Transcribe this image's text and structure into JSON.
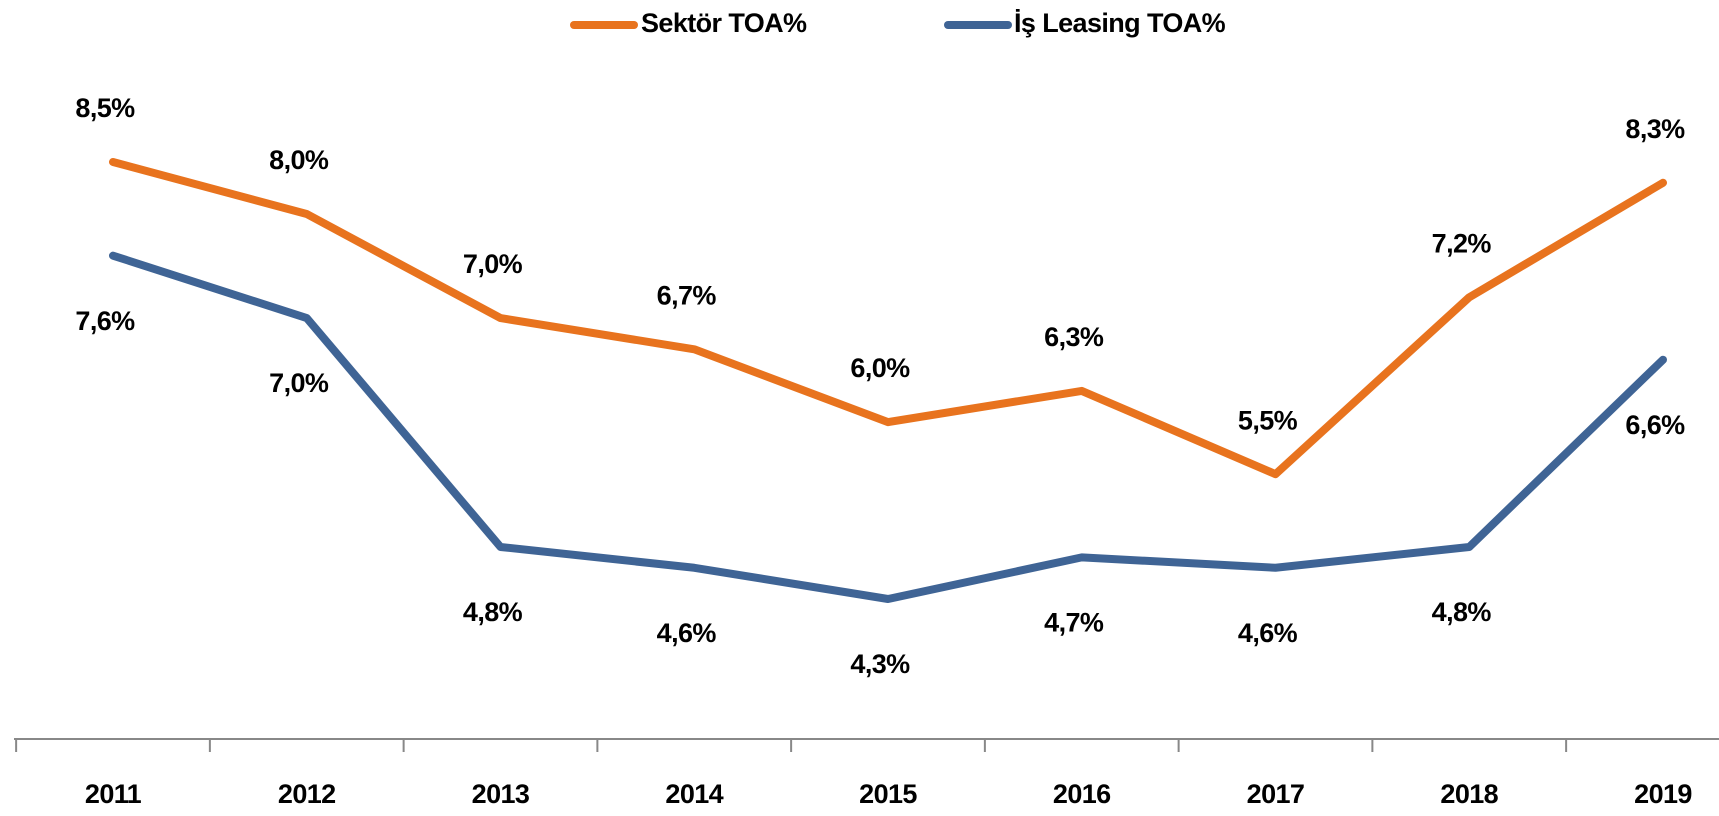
{
  "chart_data": {
    "type": "line",
    "categories": [
      "2011",
      "2012",
      "2013",
      "2014",
      "2015",
      "2016",
      "2017",
      "2018",
      "2019"
    ],
    "series": [
      {
        "name": "Sektör TOA%",
        "color": "#e8731e",
        "values": [
          8.5,
          8.0,
          7.0,
          6.7,
          6.0,
          6.3,
          5.5,
          7.2,
          8.3
        ],
        "value_labels": [
          "8,5%",
          "8,0%",
          "7,0%",
          "6,7%",
          "6,0%",
          "6,3%",
          "5,5%",
          "7,2%",
          "8,3%"
        ]
      },
      {
        "name": "İş Leasing TOA%",
        "color": "#3f6495",
        "values": [
          7.6,
          7.0,
          4.8,
          4.6,
          4.3,
          4.7,
          4.6,
          4.8,
          6.6
        ],
        "value_labels": [
          "7,6%",
          "7,0%",
          "4,8%",
          "4,6%",
          "4,3%",
          "4,7%",
          "4,6%",
          "4,8%",
          "6,6%"
        ]
      }
    ],
    "legend": "top"
  }
}
